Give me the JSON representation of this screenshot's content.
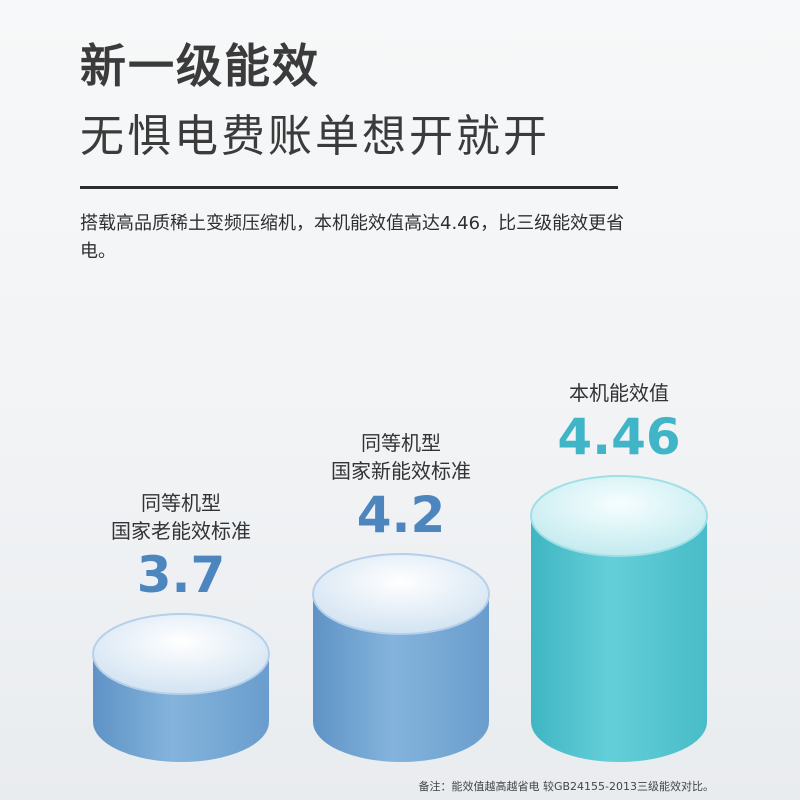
{
  "headline": {
    "main": "新一级能效",
    "sub": "无惧电费账单想开就开"
  },
  "description": "搭载高品质稀土变频压缩机，本机能效值高达4.46，比三级能效更省电。",
  "footnote": "备注：能效值越高越省电 较GB24155-2013三级能效对比。",
  "colors": {
    "blue_bar": "#7bacd7",
    "teal_bar": "#56c6d0",
    "blue_value": "#4d86bf",
    "teal_value": "#3fb5c7"
  },
  "chart_data": {
    "type": "bar",
    "title": "",
    "xlabel": "",
    "ylabel": "",
    "grid": false,
    "categories": [
      [
        "同等机型",
        "国家老能效标准"
      ],
      [
        "同等机型",
        "国家新能效标准"
      ],
      [
        "本机能效值"
      ]
    ],
    "values": [
      3.7,
      4.2,
      4.46
    ],
    "value_labels": [
      "3.7",
      "4.2",
      "4.46"
    ],
    "bar_colors": [
      "blue_bar",
      "blue_bar",
      "teal_bar"
    ]
  }
}
